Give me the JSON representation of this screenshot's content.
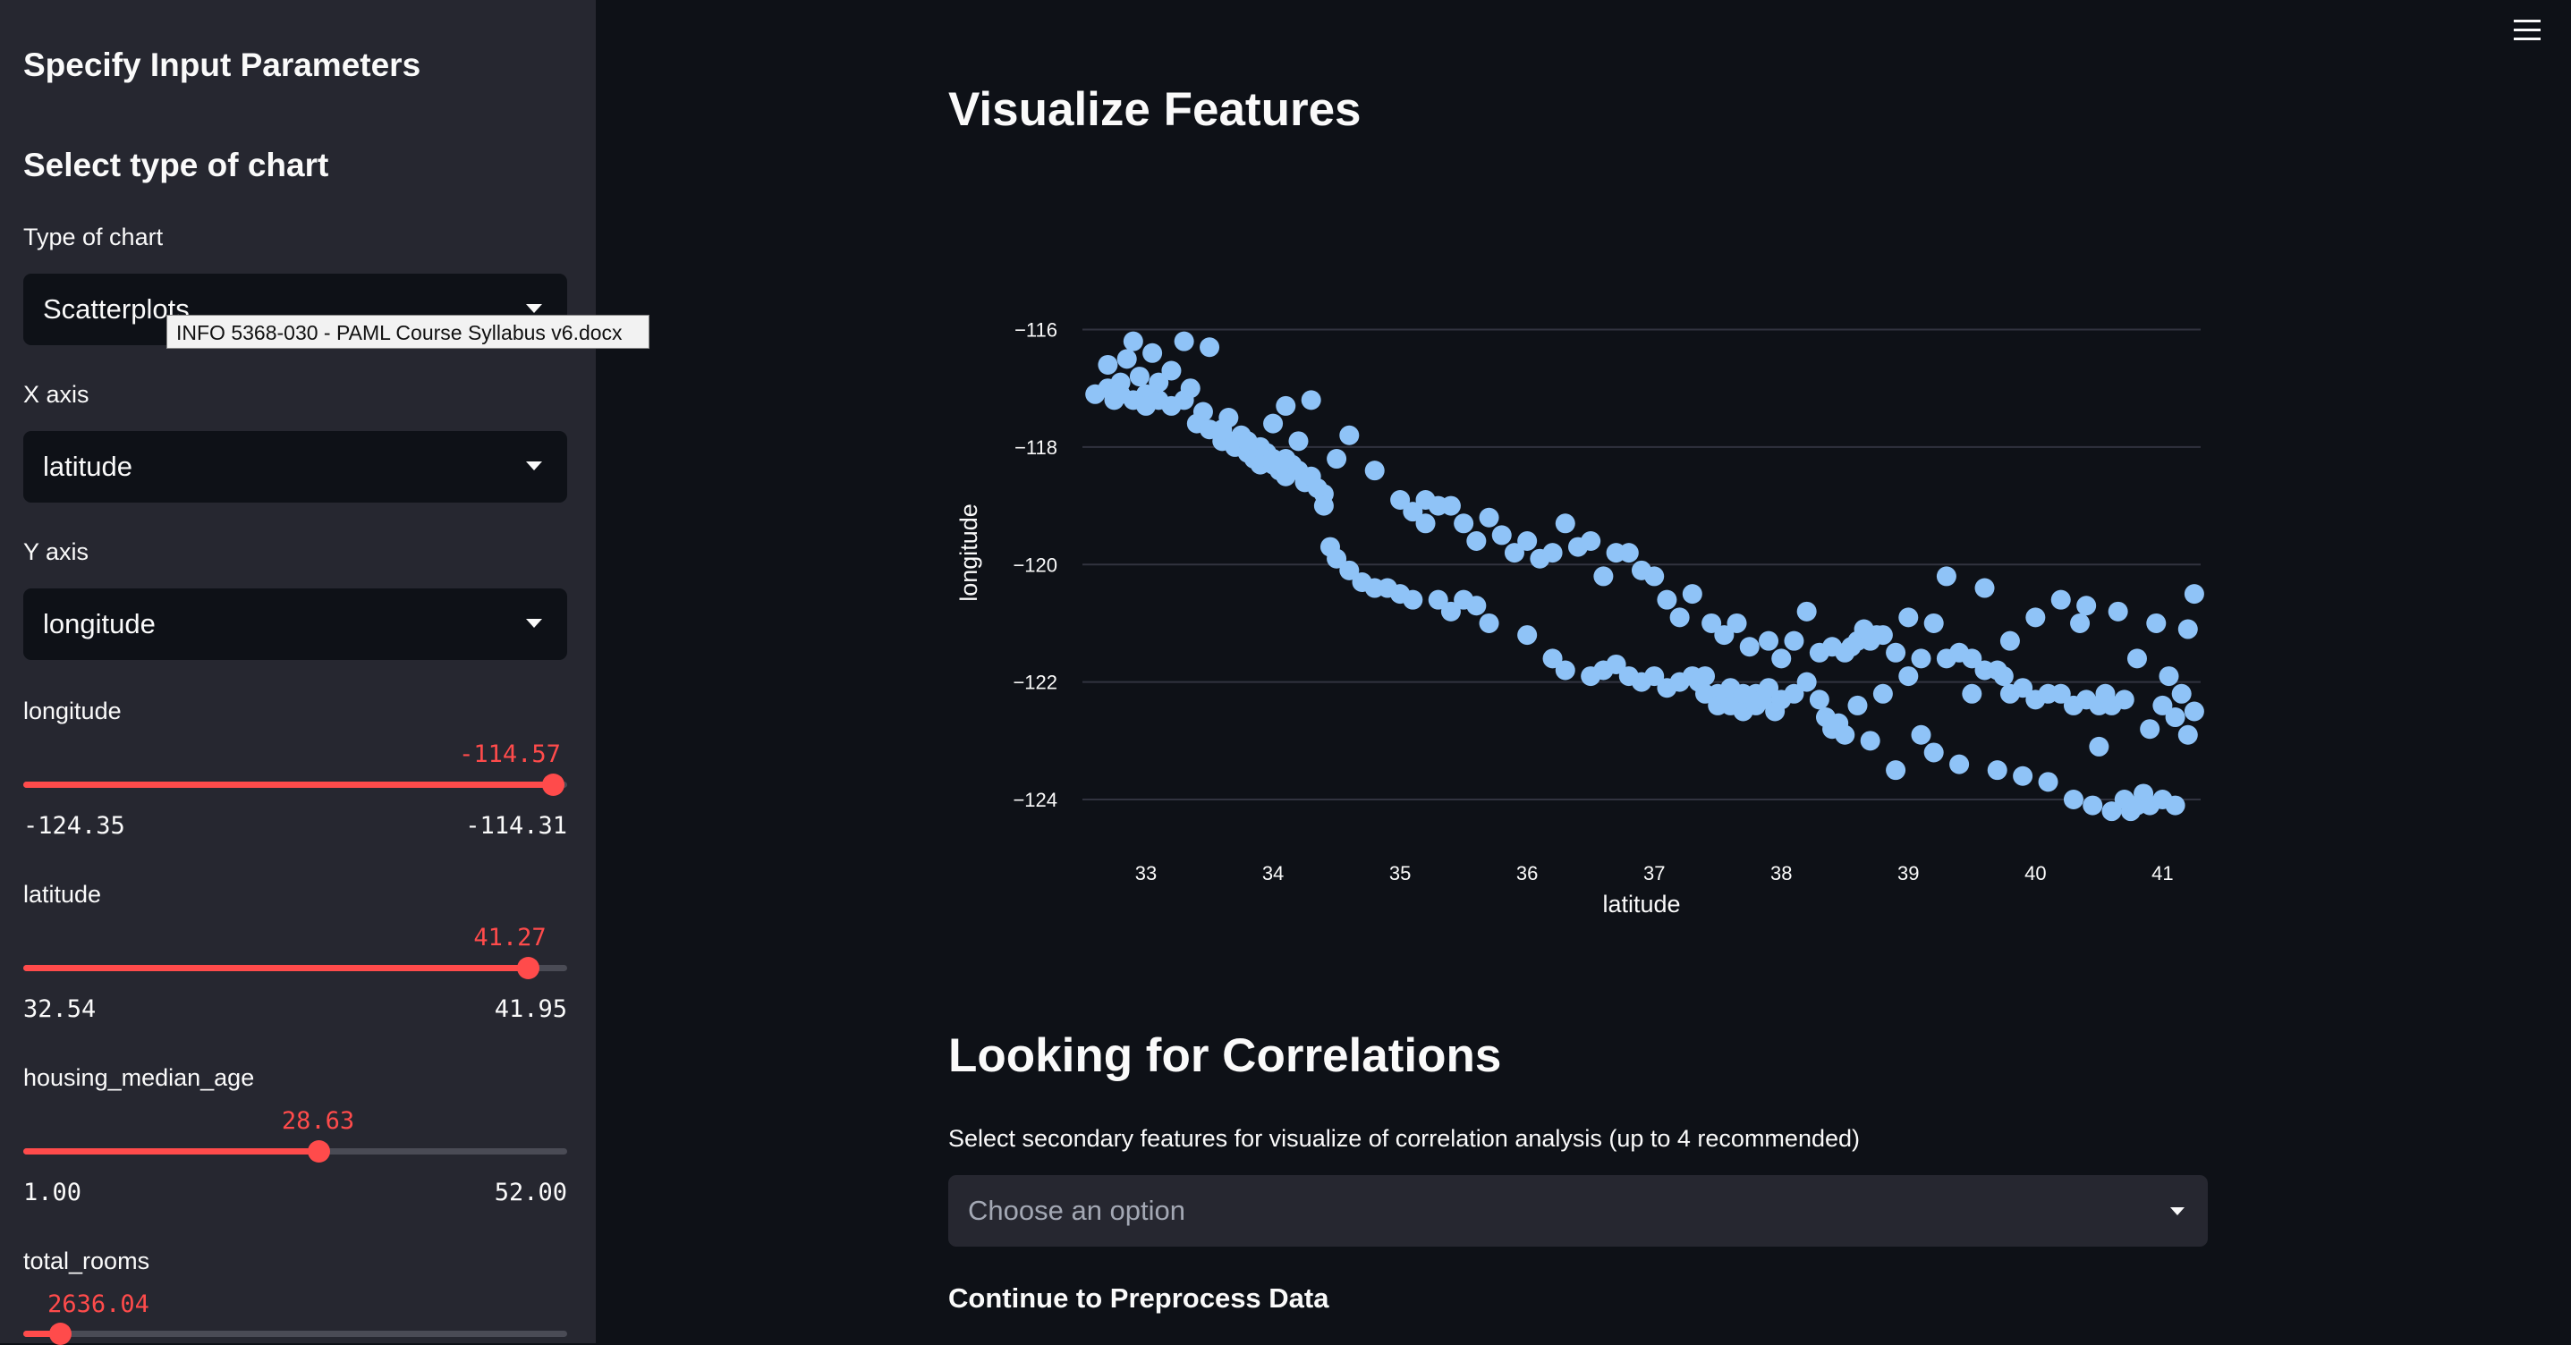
{
  "sidebar": {
    "title": "Specify Input Parameters",
    "section_title": "Select type of chart",
    "chart_type": {
      "label": "Type of chart",
      "value": "Scatterplots"
    },
    "tooltip": "INFO 5368-030 - PAML Course Syllabus v6.docx",
    "x_axis": {
      "label": "X axis",
      "value": "latitude"
    },
    "y_axis": {
      "label": "Y axis",
      "value": "longitude"
    },
    "sliders": [
      {
        "label": "longitude",
        "value": "-114.57",
        "min": "-124.35",
        "max": "-114.31",
        "fraction": 0.974
      },
      {
        "label": "latitude",
        "value": "41.27",
        "min": "32.54",
        "max": "41.95",
        "fraction": 0.928
      },
      {
        "label": "housing_median_age",
        "value": "28.63",
        "min": "1.00",
        "max": "52.00",
        "fraction": 0.542
      },
      {
        "label": "total_rooms",
        "value": "2636.04",
        "fraction": 0.067
      }
    ],
    "accent_color": "#ff4b4b"
  },
  "main": {
    "menu_icon": "hamburger-menu-icon",
    "visualize_title": "Visualize Features",
    "correlations_title": "Looking for Correlations",
    "correlations_prompt": "Select secondary features for visualize of correlation analysis (up to 4 recommended)",
    "multiselect_placeholder": "Choose an option",
    "continue_label": "Continue to Preprocess Data"
  },
  "chart_data": {
    "type": "scatter",
    "xlabel": "latitude",
    "ylabel": "longitude",
    "xlim": [
      32.5,
      41.3
    ],
    "ylim": [
      -124.7,
      -114.5
    ],
    "xticks": [
      "33",
      "34",
      "35",
      "36",
      "37",
      "38",
      "39",
      "40",
      "41"
    ],
    "yticks": [
      "−116",
      "−118",
      "−120",
      "−122",
      "−124"
    ],
    "grid": "horizontal",
    "marker_color": "#8fc3f7",
    "series": [
      {
        "points": [
          [
            32.6,
            -117.1
          ],
          [
            32.7,
            -117.0
          ],
          [
            32.7,
            -116.6
          ],
          [
            32.75,
            -117.2
          ],
          [
            32.8,
            -116.9
          ],
          [
            32.8,
            -117.1
          ],
          [
            32.85,
            -116.5
          ],
          [
            32.9,
            -116.2
          ],
          [
            32.9,
            -117.2
          ],
          [
            32.95,
            -116.8
          ],
          [
            33.0,
            -117.1
          ],
          [
            33.0,
            -117.3
          ],
          [
            33.05,
            -116.4
          ],
          [
            33.1,
            -117.2
          ],
          [
            33.1,
            -116.9
          ],
          [
            33.2,
            -117.3
          ],
          [
            33.2,
            -116.7
          ],
          [
            33.3,
            -117.2
          ],
          [
            33.3,
            -116.2
          ],
          [
            33.35,
            -117.0
          ],
          [
            33.4,
            -117.6
          ],
          [
            33.45,
            -117.4
          ],
          [
            33.5,
            -117.7
          ],
          [
            33.5,
            -116.3
          ],
          [
            33.6,
            -117.9
          ],
          [
            33.6,
            -117.7
          ],
          [
            33.65,
            -117.5
          ],
          [
            33.7,
            -117.9
          ],
          [
            33.7,
            -118.0
          ],
          [
            33.75,
            -117.8
          ],
          [
            33.8,
            -118.1
          ],
          [
            33.8,
            -117.9
          ],
          [
            33.85,
            -118.2
          ],
          [
            33.9,
            -118.0
          ],
          [
            33.9,
            -118.3
          ],
          [
            33.95,
            -118.1
          ],
          [
            34.0,
            -118.3
          ],
          [
            34.0,
            -118.2
          ],
          [
            34.0,
            -117.6
          ],
          [
            34.05,
            -118.4
          ],
          [
            34.1,
            -118.2
          ],
          [
            34.1,
            -117.3
          ],
          [
            34.1,
            -118.5
          ],
          [
            34.15,
            -118.3
          ],
          [
            34.2,
            -118.4
          ],
          [
            34.2,
            -117.9
          ],
          [
            34.25,
            -118.6
          ],
          [
            34.3,
            -118.5
          ],
          [
            34.3,
            -117.2
          ],
          [
            34.35,
            -118.7
          ],
          [
            34.4,
            -118.8
          ],
          [
            34.4,
            -119.0
          ],
          [
            34.45,
            -119.7
          ],
          [
            34.5,
            -119.9
          ],
          [
            34.5,
            -118.2
          ],
          [
            34.6,
            -120.1
          ],
          [
            34.6,
            -117.8
          ],
          [
            34.7,
            -120.3
          ],
          [
            34.8,
            -118.4
          ],
          [
            34.8,
            -120.4
          ],
          [
            34.9,
            -120.4
          ],
          [
            35.0,
            -120.5
          ],
          [
            35.0,
            -118.9
          ],
          [
            35.1,
            -120.6
          ],
          [
            35.1,
            -119.1
          ],
          [
            35.2,
            -118.9
          ],
          [
            35.2,
            -119.3
          ],
          [
            35.3,
            -119.0
          ],
          [
            35.3,
            -120.6
          ],
          [
            35.4,
            -119.0
          ],
          [
            35.4,
            -120.8
          ],
          [
            35.5,
            -119.3
          ],
          [
            35.5,
            -120.6
          ],
          [
            35.6,
            -119.6
          ],
          [
            35.6,
            -120.7
          ],
          [
            35.7,
            -119.2
          ],
          [
            35.7,
            -121.0
          ],
          [
            35.8,
            -119.5
          ],
          [
            35.9,
            -119.8
          ],
          [
            36.0,
            -119.6
          ],
          [
            36.0,
            -121.2
          ],
          [
            36.1,
            -119.9
          ],
          [
            36.2,
            -119.8
          ],
          [
            36.2,
            -121.6
          ],
          [
            36.3,
            -119.3
          ],
          [
            36.3,
            -121.8
          ],
          [
            36.4,
            -119.7
          ],
          [
            36.5,
            -121.9
          ],
          [
            36.5,
            -119.6
          ],
          [
            36.6,
            -121.8
          ],
          [
            36.6,
            -120.2
          ],
          [
            36.7,
            -119.8
          ],
          [
            36.7,
            -121.7
          ],
          [
            36.8,
            -119.8
          ],
          [
            36.8,
            -121.9
          ],
          [
            36.9,
            -120.1
          ],
          [
            36.9,
            -122.0
          ],
          [
            37.0,
            -120.2
          ],
          [
            37.0,
            -121.9
          ],
          [
            37.1,
            -120.6
          ],
          [
            37.1,
            -122.1
          ],
          [
            37.2,
            -120.9
          ],
          [
            37.2,
            -122.0
          ],
          [
            37.3,
            -121.9
          ],
          [
            37.3,
            -120.5
          ],
          [
            37.35,
            -122.0
          ],
          [
            37.4,
            -121.9
          ],
          [
            37.4,
            -122.2
          ],
          [
            37.45,
            -121.0
          ],
          [
            37.5,
            -122.2
          ],
          [
            37.5,
            -122.4
          ],
          [
            37.55,
            -121.2
          ],
          [
            37.6,
            -122.4
          ],
          [
            37.6,
            -122.1
          ],
          [
            37.65,
            -121.0
          ],
          [
            37.7,
            -122.5
          ],
          [
            37.7,
            -122.2
          ],
          [
            37.75,
            -121.4
          ],
          [
            37.8,
            -122.4
          ],
          [
            37.8,
            -122.2
          ],
          [
            37.85,
            -122.3
          ],
          [
            37.9,
            -122.1
          ],
          [
            37.9,
            -121.3
          ],
          [
            37.95,
            -122.5
          ],
          [
            38.0,
            -122.3
          ],
          [
            38.0,
            -121.6
          ],
          [
            38.1,
            -122.2
          ],
          [
            38.1,
            -121.3
          ],
          [
            38.2,
            -122.0
          ],
          [
            38.2,
            -120.8
          ],
          [
            38.3,
            -122.3
          ],
          [
            38.3,
            -121.5
          ],
          [
            38.35,
            -122.6
          ],
          [
            38.4,
            -122.8
          ],
          [
            38.4,
            -121.4
          ],
          [
            38.45,
            -122.7
          ],
          [
            38.5,
            -121.5
          ],
          [
            38.5,
            -122.9
          ],
          [
            38.55,
            -121.4
          ],
          [
            38.6,
            -121.3
          ],
          [
            38.6,
            -122.4
          ],
          [
            38.65,
            -121.1
          ],
          [
            38.7,
            -121.3
          ],
          [
            38.7,
            -123.0
          ],
          [
            38.75,
            -121.2
          ],
          [
            38.8,
            -122.2
          ],
          [
            38.8,
            -121.2
          ],
          [
            38.9,
            -123.5
          ],
          [
            38.9,
            -121.5
          ],
          [
            39.0,
            -120.9
          ],
          [
            39.0,
            -121.9
          ],
          [
            39.1,
            -121.6
          ],
          [
            39.1,
            -122.9
          ],
          [
            39.2,
            -121.0
          ],
          [
            39.2,
            -123.2
          ],
          [
            39.3,
            -121.6
          ],
          [
            39.3,
            -120.2
          ],
          [
            39.4,
            -121.5
          ],
          [
            39.4,
            -123.4
          ],
          [
            39.5,
            -121.6
          ],
          [
            39.5,
            -122.2
          ],
          [
            39.6,
            -121.8
          ],
          [
            39.6,
            -120.4
          ],
          [
            39.7,
            -121.8
          ],
          [
            39.7,
            -123.5
          ],
          [
            39.75,
            -121.9
          ],
          [
            39.8,
            -122.2
          ],
          [
            39.8,
            -121.3
          ],
          [
            39.9,
            -122.1
          ],
          [
            39.9,
            -123.6
          ],
          [
            40.0,
            -122.3
          ],
          [
            40.0,
            -120.9
          ],
          [
            40.1,
            -122.2
          ],
          [
            40.1,
            -123.7
          ],
          [
            40.2,
            -122.2
          ],
          [
            40.2,
            -120.6
          ],
          [
            40.3,
            -122.4
          ],
          [
            40.3,
            -124.0
          ],
          [
            40.35,
            -121.0
          ],
          [
            40.4,
            -122.3
          ],
          [
            40.4,
            -120.7
          ],
          [
            40.45,
            -124.1
          ],
          [
            40.5,
            -122.4
          ],
          [
            40.5,
            -123.1
          ],
          [
            40.55,
            -122.2
          ],
          [
            40.6,
            -124.2
          ],
          [
            40.6,
            -122.4
          ],
          [
            40.65,
            -120.8
          ],
          [
            40.7,
            -124.0
          ],
          [
            40.7,
            -122.3
          ],
          [
            40.75,
            -124.2
          ],
          [
            40.8,
            -124.1
          ],
          [
            40.8,
            -121.6
          ],
          [
            40.85,
            -123.9
          ],
          [
            40.9,
            -122.8
          ],
          [
            40.9,
            -124.1
          ],
          [
            40.95,
            -121.0
          ],
          [
            41.0,
            -122.4
          ],
          [
            41.0,
            -124.0
          ],
          [
            41.05,
            -121.9
          ],
          [
            41.1,
            -124.1
          ],
          [
            41.1,
            -122.6
          ],
          [
            41.15,
            -122.2
          ],
          [
            41.2,
            -121.1
          ],
          [
            41.2,
            -122.9
          ],
          [
            41.25,
            -122.5
          ],
          [
            41.25,
            -120.5
          ]
        ]
      }
    ]
  }
}
